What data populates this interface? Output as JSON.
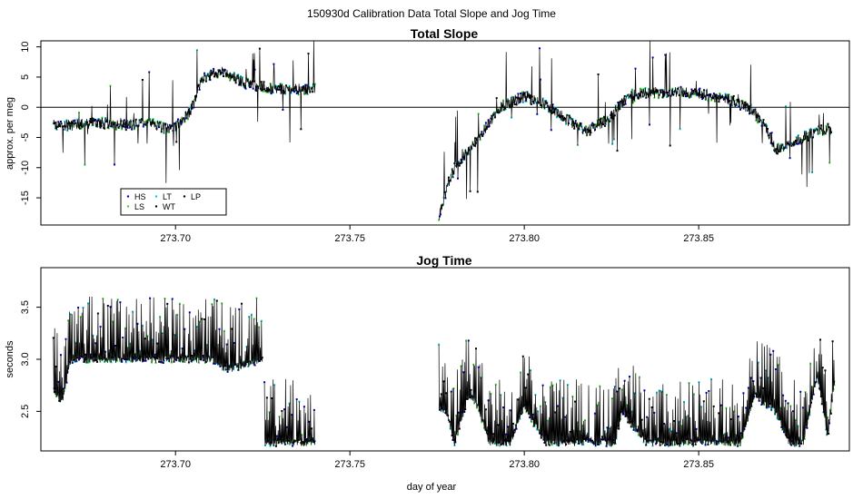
{
  "figure": {
    "title": "150930d   Calibration Data Total Slope and Jog Time",
    "xlabel": "day of year"
  },
  "colors": {
    "HS": "#0000cc",
    "LS": "#33dd33",
    "LT": "#00cccc",
    "WT": "#000000",
    "LP": "#000000"
  },
  "chart_data": [
    {
      "type": "scatter",
      "title": "Total Slope",
      "ylabel": "approx. per meg",
      "xlim": [
        273.6614,
        273.8932
      ],
      "ylim": [
        -19.5,
        11
      ],
      "xticks": [
        "273.70",
        "273.75",
        "273.80",
        "273.85"
      ],
      "xtick_values": [
        273.7,
        273.75,
        273.8,
        273.85
      ],
      "yticks": [
        "-15",
        "-10",
        "-5",
        "0",
        "5",
        "10"
      ],
      "ytick_values": [
        -15,
        -10,
        -5,
        0,
        5,
        10
      ],
      "hline": 0,
      "grid": false,
      "legend": {
        "placement": "bottom-left",
        "entries": [
          "HS",
          "LS",
          "LT",
          "WT",
          "LP"
        ]
      },
      "segments": [
        {
          "x": [
            273.665,
            273.67,
            273.678,
            273.685,
            273.692,
            273.697,
            273.7,
            273.704,
            273.708,
            273.713,
            273.72,
            273.728,
            273.734,
            273.74
          ],
          "y": [
            -3,
            -3,
            -2.5,
            -3,
            -2.5,
            -3.5,
            -3,
            -1,
            5,
            6,
            4,
            3,
            3,
            3
          ]
        },
        {
          "x": [
            273.7755,
            273.778,
            273.78,
            273.783,
            273.787,
            273.793,
            273.8,
            273.806,
            273.812,
            273.818,
            273.824,
            273.83,
            273.838,
            273.846,
            273.853,
            273.86,
            273.865,
            273.869,
            273.872,
            273.876,
            273.88,
            273.884,
            273.888
          ],
          "y": [
            -18,
            -13,
            -10,
            -8,
            -5,
            0,
            1.8,
            0.5,
            -2,
            -4,
            -2,
            2,
            2.5,
            2.5,
            2,
            1,
            -0.5,
            -3,
            -7,
            -6,
            -5,
            -4,
            -3.5
          ]
        }
      ]
    },
    {
      "type": "scatter",
      "title": "Jog Time",
      "ylabel": "seconds",
      "xlim": [
        273.6614,
        273.8932
      ],
      "ylim": [
        2.12,
        3.88
      ],
      "xticks": [
        "273.70",
        "273.75",
        "273.80",
        "273.85"
      ],
      "xtick_values": [
        273.7,
        273.75,
        273.8,
        273.85
      ],
      "yticks": [
        "2.5",
        "3.0",
        "3.5"
      ],
      "ytick_values": [
        2.5,
        3.0,
        3.5
      ],
      "grid": false,
      "segments": [
        {
          "x": [
            273.665,
            273.6675,
            273.67,
            273.7,
            273.71,
            273.715,
            273.725
          ],
          "y": [
            2.7,
            2.6,
            3.0,
            3.0,
            3.0,
            2.9,
            3.0
          ]
        },
        {
          "x": [
            273.7255,
            273.74
          ],
          "y": [
            2.2,
            2.2
          ]
        },
        {
          "x": [
            273.7755,
            273.778,
            273.78,
            273.784,
            273.786,
            273.79,
            273.796,
            273.8,
            273.806,
            273.81,
            273.826,
            273.828,
            273.835,
            273.85,
            273.862,
            273.866,
            273.872,
            273.876,
            273.88,
            273.884,
            273.887,
            273.889
          ],
          "y": [
            2.55,
            2.45,
            2.2,
            2.65,
            2.6,
            2.2,
            2.2,
            2.55,
            2.2,
            2.2,
            2.2,
            2.5,
            2.2,
            2.2,
            2.2,
            2.65,
            2.5,
            2.2,
            2.2,
            2.85,
            2.25,
            2.8
          ]
        }
      ]
    }
  ]
}
